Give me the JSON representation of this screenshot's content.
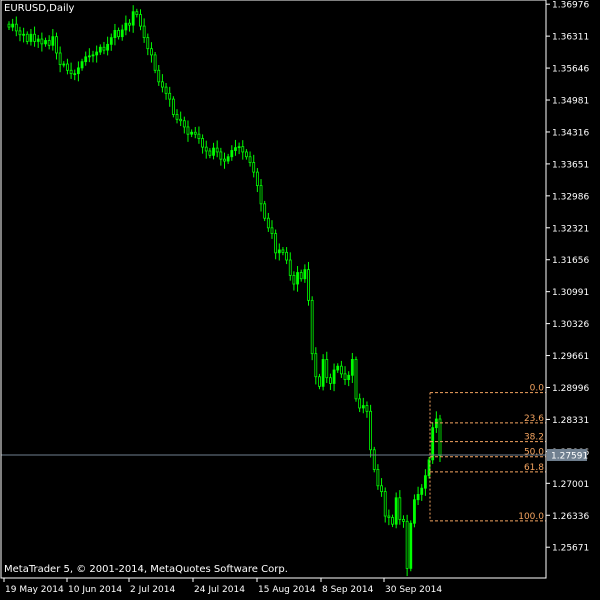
{
  "window": {
    "title": "EURUSD,Daily",
    "copyright": "MetaTrader 5, © 2001-2014, MetaQuotes Software Corp."
  },
  "colors": {
    "background": "#000000",
    "axis": "#ffffff",
    "candle": "#00ff00",
    "fibonacci": "#f4a460",
    "price_line": "#708090",
    "price_label_bg": "#708090"
  },
  "chart_data": {
    "type": "candlestick",
    "symbol": "EURUSD",
    "timeframe": "Daily",
    "ylim": [
      1.2503,
      1.3698
    ],
    "y_ticks": [
      "1.36976",
      "1.36311",
      "1.35646",
      "1.34981",
      "1.34316",
      "1.33651",
      "1.32986",
      "1.32321",
      "1.31656",
      "1.30991",
      "1.30326",
      "1.29661",
      "1.28996",
      "1.28331",
      "1.27666",
      "1.27001",
      "1.26336",
      "1.25671"
    ],
    "x_ticks": [
      "19 May 2014",
      "10 Jun 2014",
      "2 Jul 2014",
      "24 Jul 2014",
      "15 Aug 2014",
      "8 Sep 2014",
      "30 Sep 2014"
    ],
    "current_price": "1.27591",
    "fibonacci": {
      "high": 1.2889,
      "low": 1.2622,
      "levels": [
        {
          "label": "0.0",
          "ratio": 0.0
        },
        {
          "label": "23.6",
          "ratio": 0.236
        },
        {
          "label": "38.2",
          "ratio": 0.382
        },
        {
          "label": "50.0",
          "ratio": 0.5
        },
        {
          "label": "61.8",
          "ratio": 0.618
        },
        {
          "label": "100.0",
          "ratio": 1.0
        }
      ]
    },
    "closes": [
      1.365,
      1.3656,
      1.3642,
      1.3634,
      1.3635,
      1.362,
      1.3635,
      1.362,
      1.3625,
      1.3615,
      1.3622,
      1.3612,
      1.363,
      1.3596,
      1.3572,
      1.3573,
      1.356,
      1.3553,
      1.3553,
      1.3565,
      1.3578,
      1.3588,
      1.359,
      1.3592,
      1.3598,
      1.3608,
      1.3602,
      1.3614,
      1.3628,
      1.3643,
      1.363,
      1.3644,
      1.3658,
      1.3654,
      1.3682,
      1.3676,
      1.3652,
      1.3628,
      1.3605,
      1.3592,
      1.356,
      1.3536,
      1.3525,
      1.3512,
      1.35,
      1.3468,
      1.3458,
      1.3455,
      1.3442,
      1.3427,
      1.3431,
      1.3427,
      1.3418,
      1.34,
      1.3392,
      1.3383,
      1.3398,
      1.339,
      1.3375,
      1.3371,
      1.338,
      1.3393,
      1.3399,
      1.3401,
      1.339,
      1.338,
      1.3368,
      1.3348,
      1.332,
      1.3282,
      1.3252,
      1.3232,
      1.322,
      1.318,
      1.3186,
      1.3181,
      1.3165,
      1.3133,
      1.3115,
      1.3139,
      1.3126,
      1.3145,
      1.3081,
      1.297,
      1.2922,
      1.2902,
      1.2958,
      1.292,
      1.2908,
      1.2936,
      1.2944,
      1.2928,
      1.2916,
      1.2925,
      1.2958,
      1.2876,
      1.2857,
      1.2862,
      1.285,
      1.277,
      1.2729,
      1.2695,
      1.2683,
      1.2632,
      1.2629,
      1.2615,
      1.267,
      1.2625,
      1.2621,
      1.2523,
      1.2617,
      1.2666,
      1.2677,
      1.269,
      1.2716,
      1.2749,
      1.2816,
      1.2834,
      1.2758
    ]
  }
}
